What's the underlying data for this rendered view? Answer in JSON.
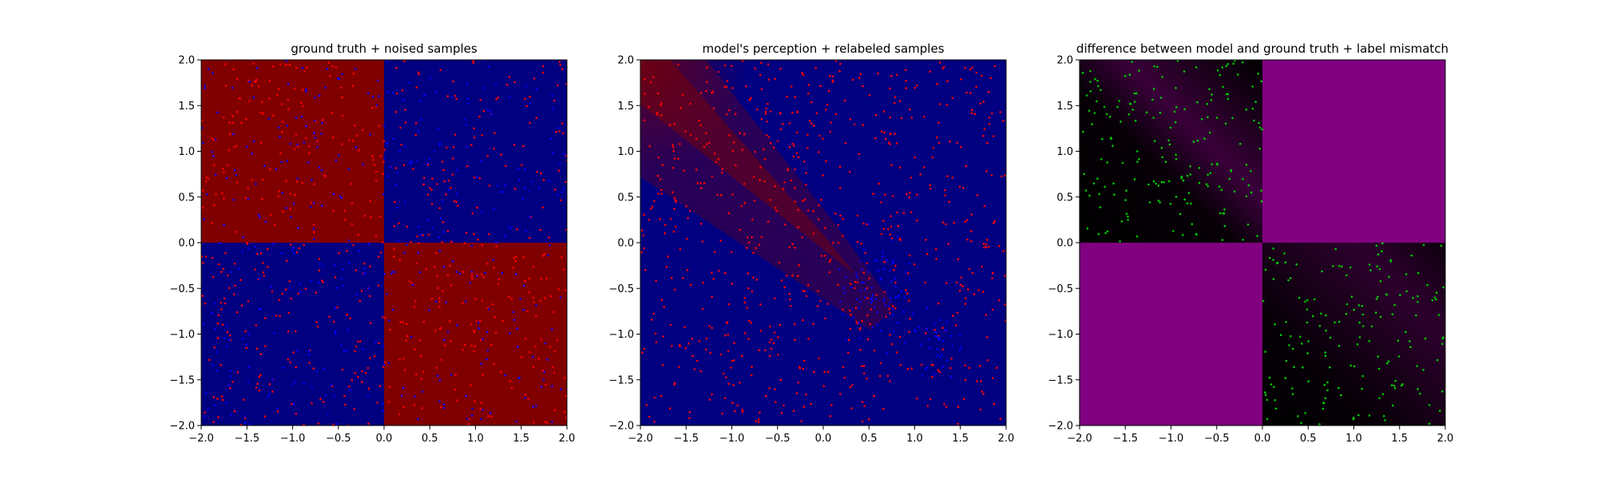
{
  "chart_data": [
    {
      "type": "scatter",
      "title": "ground truth + noised samples",
      "xlim": [
        -2.0,
        2.0
      ],
      "ylim": [
        -2.0,
        2.0
      ],
      "xticks": [
        "−2.0",
        "−1.5",
        "−1.0",
        "−0.5",
        "0.0",
        "0.5",
        "1.0",
        "1.5",
        "2.0"
      ],
      "yticks": [
        "−2.0",
        "−1.5",
        "−1.0",
        "−0.5",
        "0.0",
        "0.5",
        "1.0",
        "1.5",
        "2.0"
      ],
      "background": {
        "kind": "quadrant_xor",
        "colors": {
          "positive_xy": "#000080",
          "negative_xy": "#800000"
        }
      },
      "series": [
        {
          "color": "#ff0000",
          "distribution": "uniform",
          "x_range": [
            -2,
            2
          ],
          "y_range": [
            -2,
            2
          ],
          "count": 600
        },
        {
          "color": "#0000ff",
          "distribution": "uniform",
          "x_range": [
            -2,
            2
          ],
          "y_range": [
            -2,
            2
          ],
          "count": 380
        }
      ]
    },
    {
      "type": "scatter",
      "title": "model's perception + relabeled samples",
      "xlim": [
        -2.0,
        2.0
      ],
      "ylim": [
        -2.0,
        2.0
      ],
      "xticks": [
        "−2.0",
        "−1.5",
        "−1.0",
        "−0.5",
        "0.0",
        "0.5",
        "1.0",
        "1.5",
        "2.0"
      ],
      "yticks": [
        "−2.0",
        "−1.5",
        "−1.0",
        "−0.5",
        "0.0",
        "0.5",
        "1.0",
        "1.5",
        "2.0"
      ],
      "background": {
        "kind": "diagonal_band",
        "band_direction": [
          1,
          -1
        ],
        "colors": {
          "base": "#000080",
          "band": "#800000"
        }
      },
      "series": [
        {
          "color": "#ff0000",
          "distribution": "uniform",
          "x_range": [
            -2,
            2
          ],
          "y_range": [
            -2,
            2
          ],
          "count": 720
        },
        {
          "color": "#0000ff",
          "distribution": "cluster",
          "center": [
            0.6,
            -0.5
          ],
          "spread": [
            0.45,
            0.45
          ],
          "count": 80
        },
        {
          "color": "#0000ff",
          "distribution": "cluster",
          "center": [
            1.2,
            -1.1
          ],
          "spread": [
            0.3,
            0.35
          ],
          "count": 35
        }
      ]
    },
    {
      "type": "scatter",
      "title": "difference between model and ground truth + label mismatch",
      "xlim": [
        -2.0,
        2.0
      ],
      "ylim": [
        -2.0,
        2.0
      ],
      "xticks": [
        "−2.0",
        "−1.5",
        "−1.0",
        "−0.5",
        "0.0",
        "0.5",
        "1.0",
        "1.5",
        "2.0"
      ],
      "yticks": [
        "−2.0",
        "−1.5",
        "−1.0",
        "−0.5",
        "0.0",
        "0.5",
        "1.0",
        "1.5",
        "2.0"
      ],
      "background": {
        "kind": "quadrant_difference",
        "colors": {
          "match": "#000000",
          "mismatch": "#800080"
        }
      },
      "series": [
        {
          "color": "#00cc00",
          "distribution": "uniform",
          "x_range": [
            -2,
            0
          ],
          "y_range": [
            0,
            2
          ],
          "count": 190
        },
        {
          "color": "#00cc00",
          "distribution": "uniform",
          "x_range": [
            0,
            2
          ],
          "y_range": [
            -2,
            0
          ],
          "count": 170
        }
      ]
    }
  ]
}
